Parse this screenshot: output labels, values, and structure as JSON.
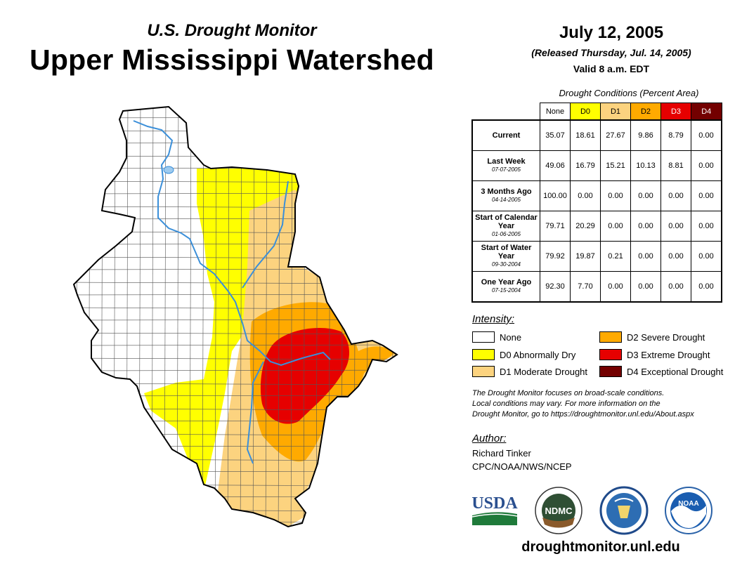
{
  "header": {
    "subtitle": "U.S. Drought Monitor",
    "title": "Upper Mississippi Watershed",
    "date": "July 12, 2005",
    "released": "(Released Thursday, Jul. 14, 2005)",
    "valid": "Valid 8 a.m. EDT"
  },
  "conditions_table": {
    "title": "Drought Conditions (Percent Area)",
    "columns": [
      {
        "label": "None",
        "color": "#ffffff"
      },
      {
        "label": "D0",
        "color": "#ffff00"
      },
      {
        "label": "D1",
        "color": "#fcd37f"
      },
      {
        "label": "D2",
        "color": "#ffaa00"
      },
      {
        "label": "D3",
        "color": "#e60000"
      },
      {
        "label": "D4",
        "color": "#730000"
      }
    ],
    "rows": [
      {
        "label": "Current",
        "date": "",
        "values": [
          "35.07",
          "18.61",
          "27.67",
          "9.86",
          "8.79",
          "0.00"
        ]
      },
      {
        "label": "Last Week",
        "date": "07-07-2005",
        "values": [
          "49.06",
          "16.79",
          "15.21",
          "10.13",
          "8.81",
          "0.00"
        ]
      },
      {
        "label": "3 Months Ago",
        "date": "04-14-2005",
        "values": [
          "100.00",
          "0.00",
          "0.00",
          "0.00",
          "0.00",
          "0.00"
        ]
      },
      {
        "label": "Start of Calendar Year",
        "date": "01-06-2005",
        "values": [
          "79.71",
          "20.29",
          "0.00",
          "0.00",
          "0.00",
          "0.00"
        ]
      },
      {
        "label": "Start of Water Year",
        "date": "09-30-2004",
        "values": [
          "79.92",
          "19.87",
          "0.21",
          "0.00",
          "0.00",
          "0.00"
        ]
      },
      {
        "label": "One Year Ago",
        "date": "07-15-2004",
        "values": [
          "92.30",
          "7.70",
          "0.00",
          "0.00",
          "0.00",
          "0.00"
        ]
      }
    ]
  },
  "legend": {
    "title": "Intensity:",
    "items": [
      {
        "label": "None",
        "color": "#ffffff"
      },
      {
        "label": "D0 Abnormally Dry",
        "color": "#ffff00"
      },
      {
        "label": "D1 Moderate Drought",
        "color": "#fcd37f"
      },
      {
        "label": "D2 Severe Drought",
        "color": "#ffaa00"
      },
      {
        "label": "D3 Extreme Drought",
        "color": "#e60000"
      },
      {
        "label": "D4 Exceptional Drought",
        "color": "#730000"
      }
    ]
  },
  "disclaimer": {
    "line1": "The Drought Monitor focuses on broad-scale conditions.",
    "line2": "Local conditions may vary. For more information on the",
    "line3": "Drought Monitor, go to https://droughtmonitor.unl.edu/About.aspx"
  },
  "author": {
    "title": "Author:",
    "name": "Richard Tinker",
    "org": "CPC/NOAA/NWS/NCEP"
  },
  "logos": {
    "usda": "USDA",
    "ndmc": "NDMC",
    "noaa": "NOAA"
  },
  "footer": {
    "url": "droughtmonitor.unl.edu"
  },
  "map": {
    "colors": {
      "none": "#ffffff",
      "d0": "#ffff00",
      "d1": "#fcd37f",
      "d2": "#ffaa00",
      "d3": "#e60000",
      "river": "#3b8fd9",
      "county_line": "#555555"
    }
  }
}
